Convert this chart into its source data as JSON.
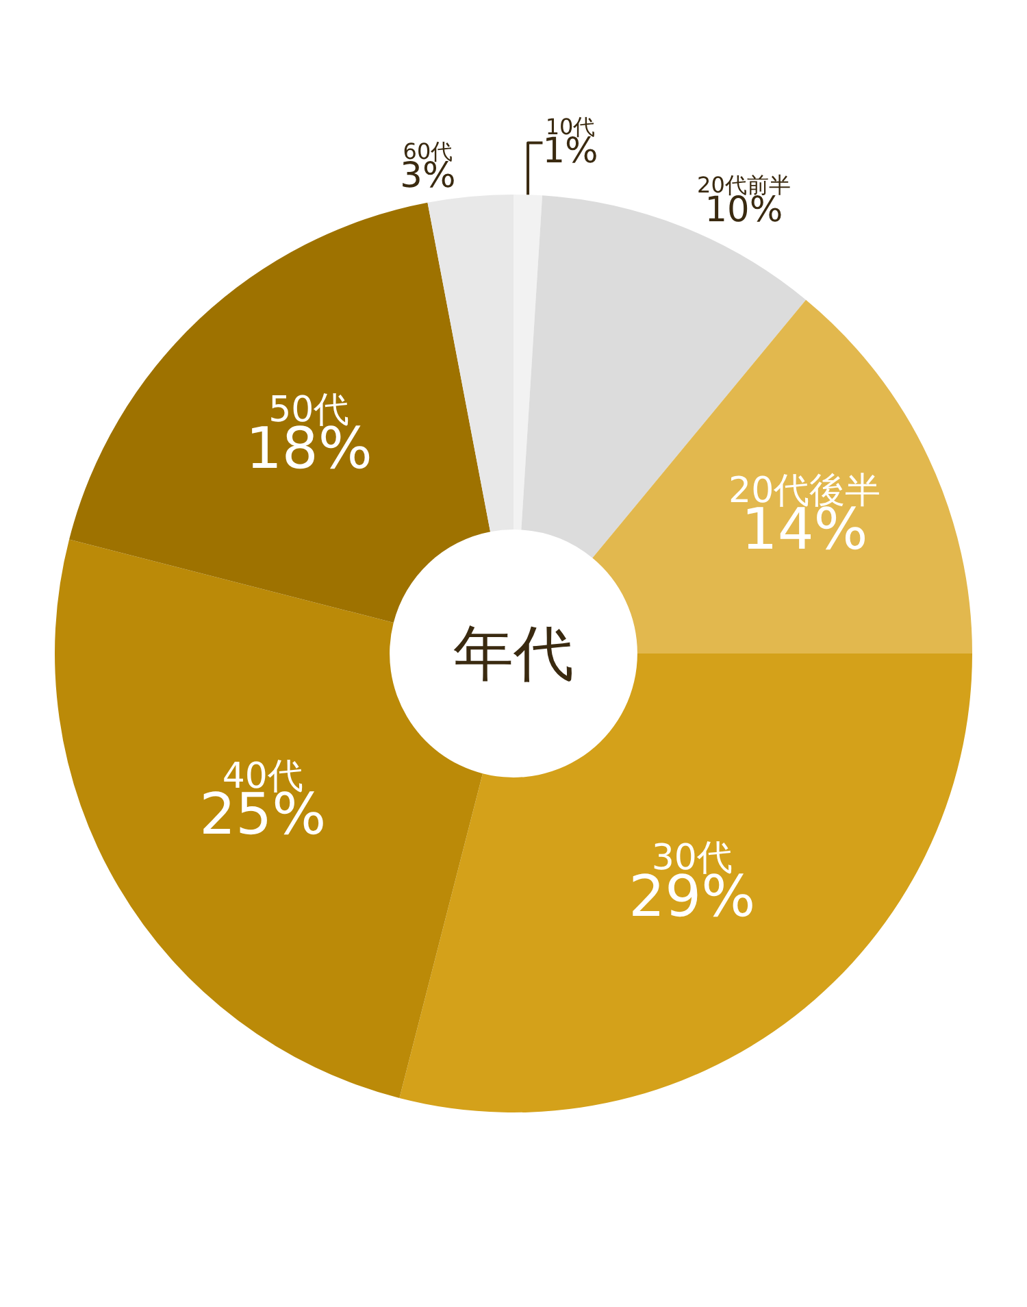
{
  "chart_data": {
    "type": "donut",
    "title": "年代",
    "categories": [
      "10代",
      "20代前半",
      "20代後半",
      "30代",
      "40代",
      "50代",
      "60代"
    ],
    "values": [
      1,
      10,
      14,
      29,
      25,
      18,
      3
    ],
    "value_labels": [
      "1%",
      "10%",
      "14%",
      "29%",
      "25%",
      "18%",
      "3%"
    ],
    "colors": [
      "#f2f2f2",
      "#dcdcdc",
      "#e2b84e",
      "#d4a11a",
      "#bb8a08",
      "#9e7200",
      "#e8e8e8"
    ],
    "legend": false
  }
}
